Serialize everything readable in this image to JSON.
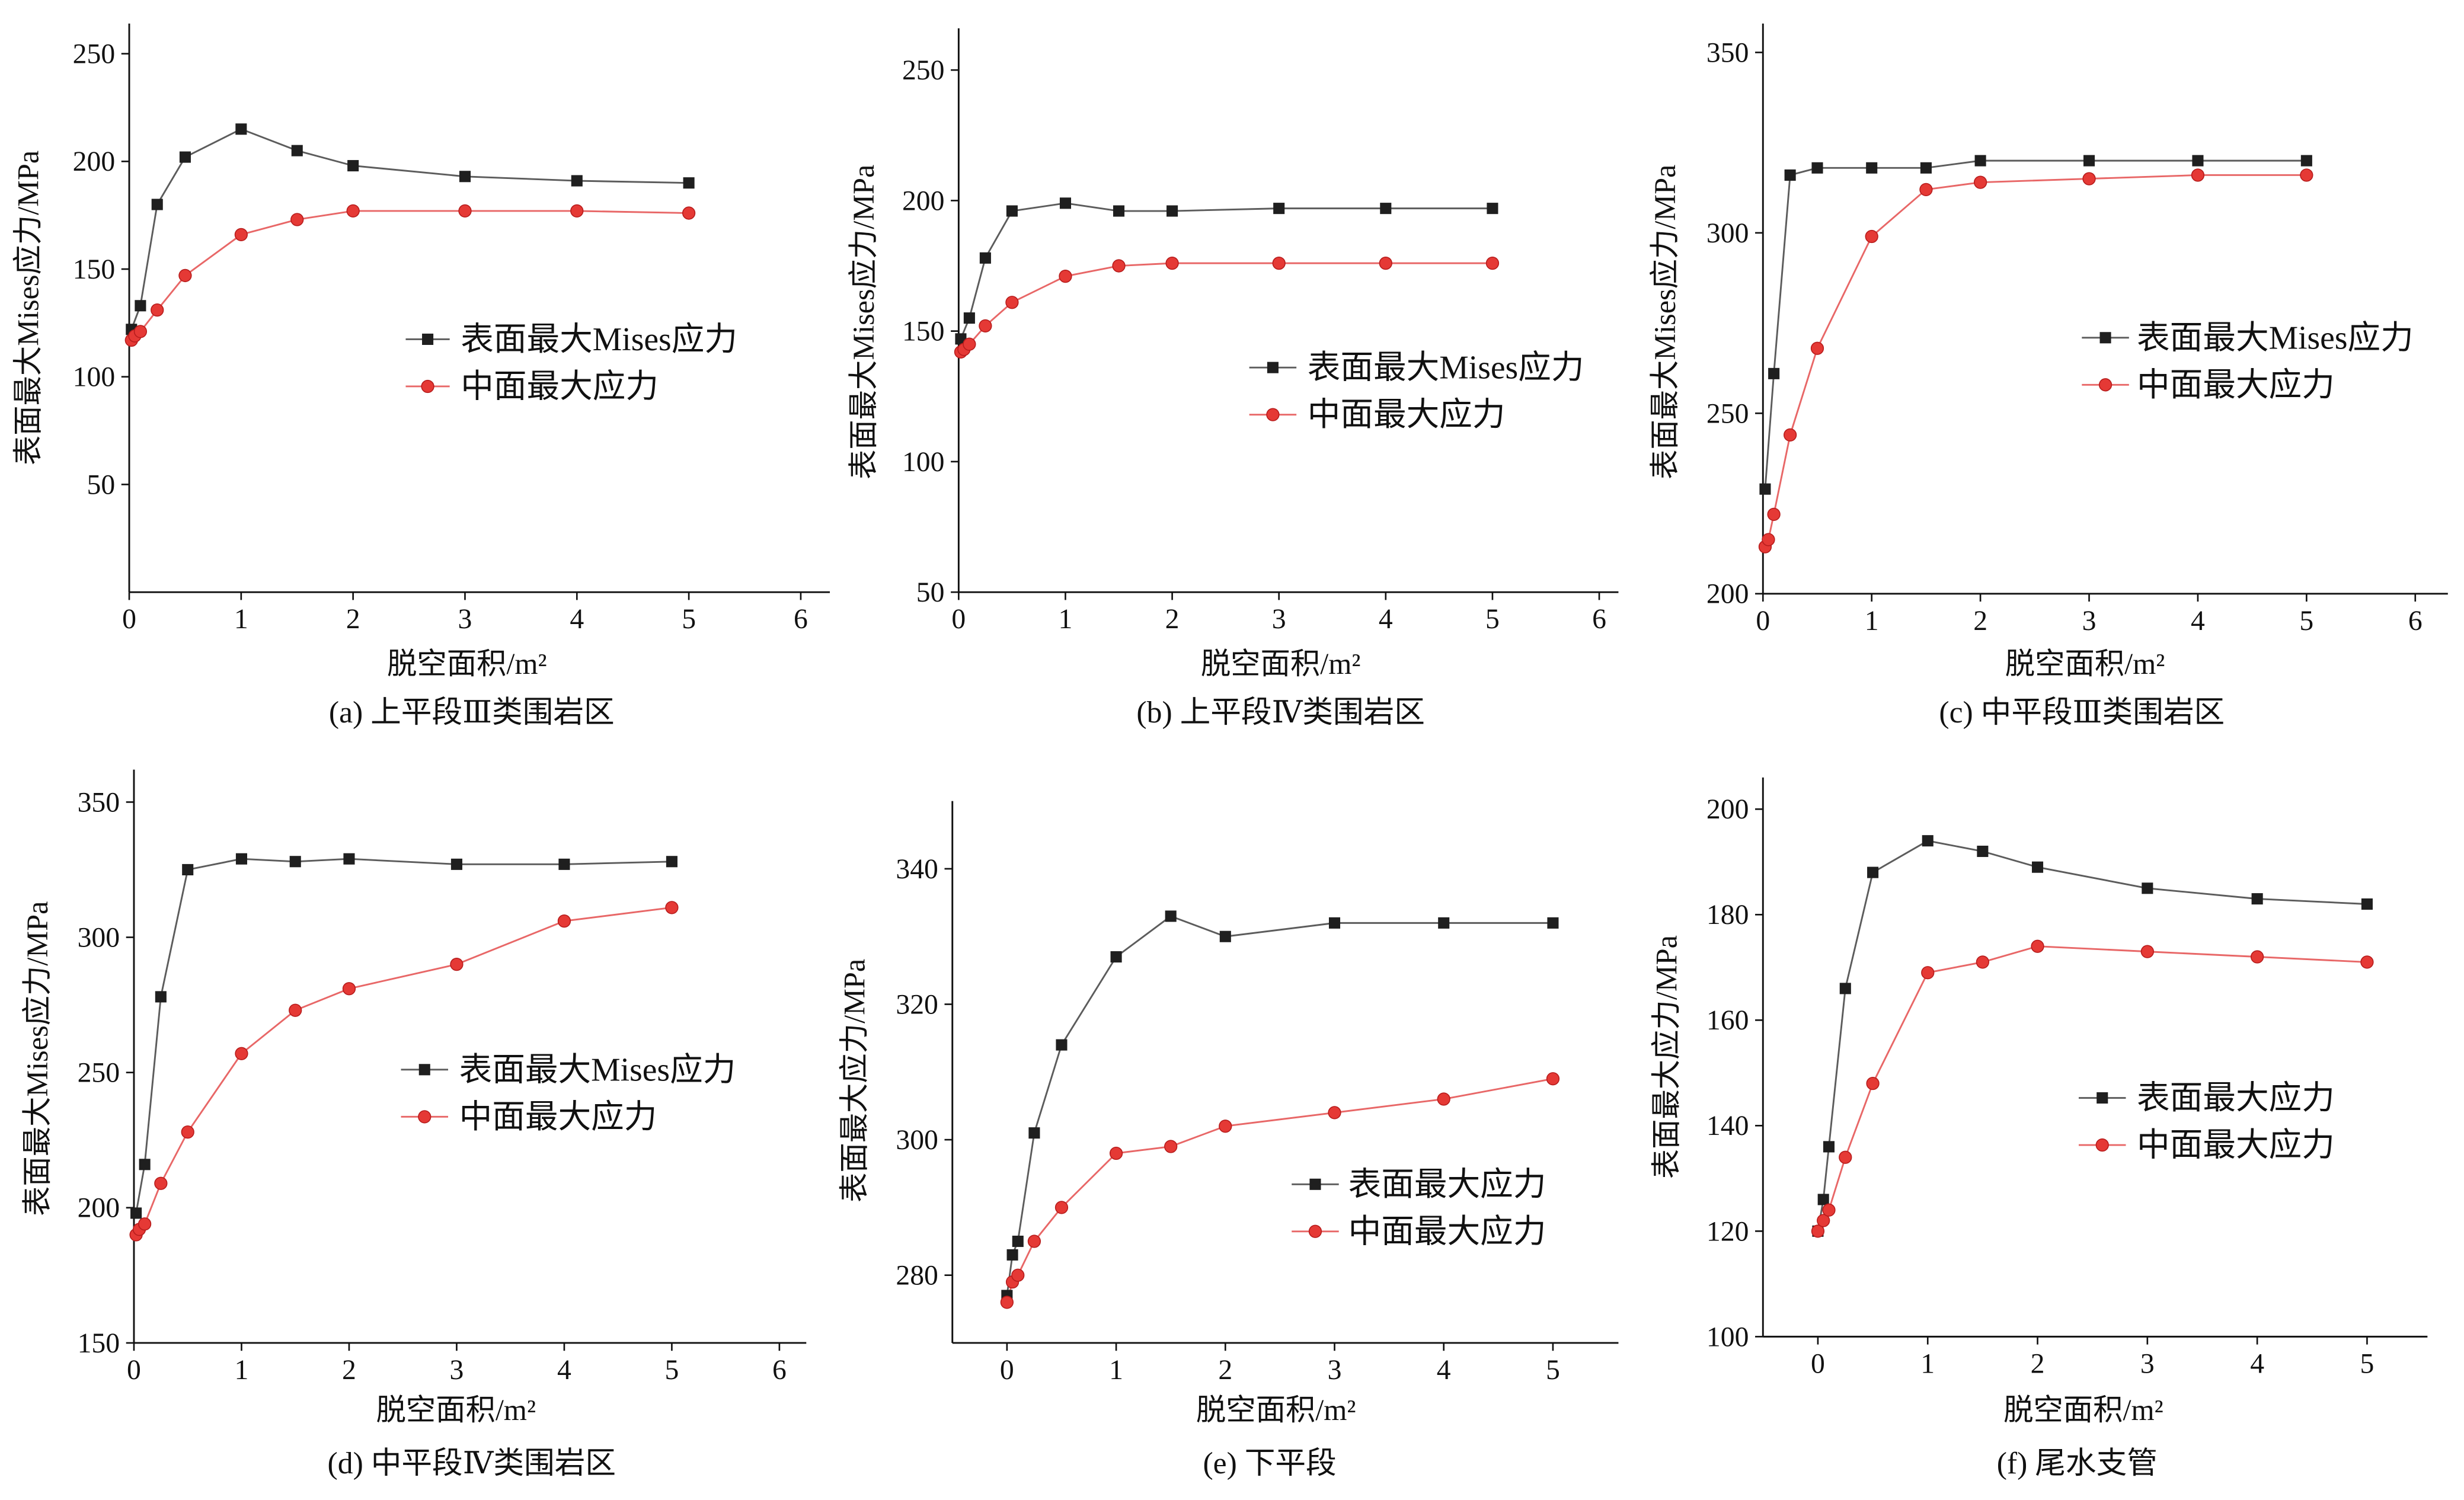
{
  "colors": {
    "background": "#ffffff",
    "square_marker": "#1f1f1f",
    "square_line": "#5c5c5c",
    "circle_marker": "#e53935",
    "circle_edge": "#b71c1c",
    "circle_line": "#e86767"
  },
  "chart_data": [
    {
      "type": "line",
      "caption": "(a) 上平段Ⅲ类围岩区",
      "xlabel": "脱空面积/m²",
      "ylabel": "表面最大Mises应力/MPa",
      "xlim": [
        0,
        6.26
      ],
      "ylim": [
        0,
        264
      ],
      "xticks": [
        0,
        1,
        2,
        3,
        4,
        5,
        6
      ],
      "yticks": [
        50,
        100,
        150,
        200,
        250
      ],
      "legend_position": "center-right",
      "series": [
        {
          "name": "表面最大Mises应力",
          "marker": "square",
          "x": [
            0.02,
            0.1,
            0.25,
            0.5,
            1,
            1.5,
            2,
            3,
            4,
            5
          ],
          "y": [
            122,
            133,
            180,
            202,
            215,
            205,
            198,
            193,
            191,
            190
          ]
        },
        {
          "name": "中面最大应力",
          "marker": "circle",
          "x": [
            0.02,
            0.05,
            0.1,
            0.25,
            0.5,
            1,
            1.5,
            2,
            3,
            4,
            5
          ],
          "y": [
            117,
            119,
            121,
            131,
            147,
            166,
            173,
            177,
            177,
            177,
            176
          ]
        }
      ]
    },
    {
      "type": "line",
      "caption": "(b) 上平段Ⅳ类围岩区",
      "xlabel": "脱空面积/m²",
      "ylabel": "表面最大Mises应力/MPa",
      "xlim": [
        0,
        6.18
      ],
      "ylim": [
        50,
        266
      ],
      "xticks": [
        0,
        1,
        2,
        3,
        4,
        5,
        6
      ],
      "yticks": [
        50,
        100,
        150,
        200,
        250
      ],
      "legend_position": "center-right",
      "series": [
        {
          "name": "表面最大Mises应力",
          "marker": "square",
          "x": [
            0.02,
            0.1,
            0.25,
            0.5,
            1,
            1.5,
            2,
            3,
            4,
            5
          ],
          "y": [
            147,
            155,
            178,
            196,
            199,
            196,
            196,
            197,
            197,
            197
          ]
        },
        {
          "name": "中面最大应力",
          "marker": "circle",
          "x": [
            0.02,
            0.05,
            0.1,
            0.25,
            0.5,
            1,
            1.5,
            2,
            3,
            4,
            5
          ],
          "y": [
            142,
            143,
            145,
            152,
            161,
            171,
            175,
            176,
            176,
            176,
            176
          ]
        }
      ]
    },
    {
      "type": "line",
      "caption": "(c) 中平段Ⅲ类围岩区",
      "xlabel": "脱空面积/m²",
      "ylabel": "表面最大Mises应力/MPa",
      "xlim": [
        0,
        6.3
      ],
      "ylim": [
        200,
        358
      ],
      "xticks": [
        0,
        1,
        2,
        3,
        4,
        5,
        6
      ],
      "yticks": [
        200,
        250,
        300,
        350
      ],
      "legend_position": "center-right",
      "series": [
        {
          "name": "表面最大Mises应力",
          "marker": "square",
          "x": [
            0.02,
            0.1,
            0.25,
            0.5,
            1,
            1.5,
            2,
            3,
            4,
            5
          ],
          "y": [
            229,
            261,
            316,
            318,
            318,
            318,
            320,
            320,
            320,
            320
          ]
        },
        {
          "name": "中面最大应力",
          "marker": "circle",
          "x": [
            0.02,
            0.05,
            0.1,
            0.25,
            0.5,
            1,
            1.5,
            2,
            3,
            4,
            5
          ],
          "y": [
            213,
            215,
            222,
            244,
            268,
            299,
            312,
            314,
            315,
            316,
            316
          ]
        }
      ]
    },
    {
      "type": "line",
      "caption": "(d) 中平段Ⅳ类围岩区",
      "xlabel": "脱空面积/m²",
      "ylabel": "表面最大Mises应力/MPa",
      "xlim": [
        0,
        6.25
      ],
      "ylim": [
        150,
        362
      ],
      "xticks": [
        0,
        1,
        2,
        3,
        4,
        5,
        6
      ],
      "yticks": [
        150,
        200,
        250,
        300,
        350
      ],
      "legend_position": "center-right",
      "series": [
        {
          "name": "表面最大Mises应力",
          "marker": "square",
          "x": [
            0.02,
            0.1,
            0.25,
            0.5,
            1,
            1.5,
            2,
            3,
            4,
            5
          ],
          "y": [
            198,
            216,
            278,
            325,
            329,
            328,
            329,
            327,
            327,
            328
          ]
        },
        {
          "name": "中面最大应力",
          "marker": "circle",
          "x": [
            0.02,
            0.05,
            0.1,
            0.25,
            0.5,
            1,
            1.5,
            2,
            3,
            4,
            5
          ],
          "y": [
            190,
            192,
            194,
            209,
            228,
            257,
            273,
            281,
            290,
            306,
            311
          ]
        }
      ]
    },
    {
      "type": "line",
      "caption": "(e) 下平段",
      "xlabel": "脱空面积/m²",
      "ylabel": "表面最大应力/MPa",
      "xlim": [
        -0.5,
        5.6
      ],
      "ylim": [
        270,
        350
      ],
      "xticks": [
        0,
        1,
        2,
        3,
        4,
        5
      ],
      "yticks": [
        280,
        300,
        320,
        340
      ],
      "legend_position": "lower-right",
      "series": [
        {
          "name": "表面最大应力",
          "marker": "square",
          "x": [
            0,
            0.05,
            0.1,
            0.25,
            0.5,
            1,
            1.5,
            2,
            3,
            4,
            5
          ],
          "y": [
            277,
            283,
            285,
            301,
            314,
            327,
            333,
            330,
            332,
            332,
            332
          ]
        },
        {
          "name": "中面最大应力",
          "marker": "circle",
          "x": [
            0,
            0.05,
            0.1,
            0.25,
            0.5,
            1,
            1.5,
            2,
            3,
            4,
            5
          ],
          "y": [
            276,
            279,
            280,
            285,
            290,
            298,
            299,
            302,
            304,
            306,
            309
          ]
        }
      ]
    },
    {
      "type": "line",
      "caption": "(f) 尾水支管",
      "xlabel": "脱空面积/m²",
      "ylabel": "表面最大应力/MPa",
      "xlim": [
        -0.5,
        5.55
      ],
      "ylim": [
        100,
        206
      ],
      "xticks": [
        0,
        1,
        2,
        3,
        4,
        5
      ],
      "yticks": [
        100,
        120,
        140,
        160,
        180,
        200
      ],
      "legend_position": "center-right",
      "series": [
        {
          "name": "表面最大应力",
          "marker": "square",
          "x": [
            0,
            0.05,
            0.1,
            0.25,
            0.5,
            1,
            1.5,
            2,
            3,
            4,
            5
          ],
          "y": [
            120,
            126,
            136,
            166,
            188,
            194,
            192,
            189,
            185,
            183,
            182
          ]
        },
        {
          "name": "中面最大应力",
          "marker": "circle",
          "x": [
            0,
            0.05,
            0.1,
            0.25,
            0.5,
            1,
            1.5,
            2,
            3,
            4,
            5
          ],
          "y": [
            120,
            122,
            124,
            134,
            148,
            169,
            171,
            174,
            173,
            172,
            171
          ]
        }
      ]
    }
  ]
}
